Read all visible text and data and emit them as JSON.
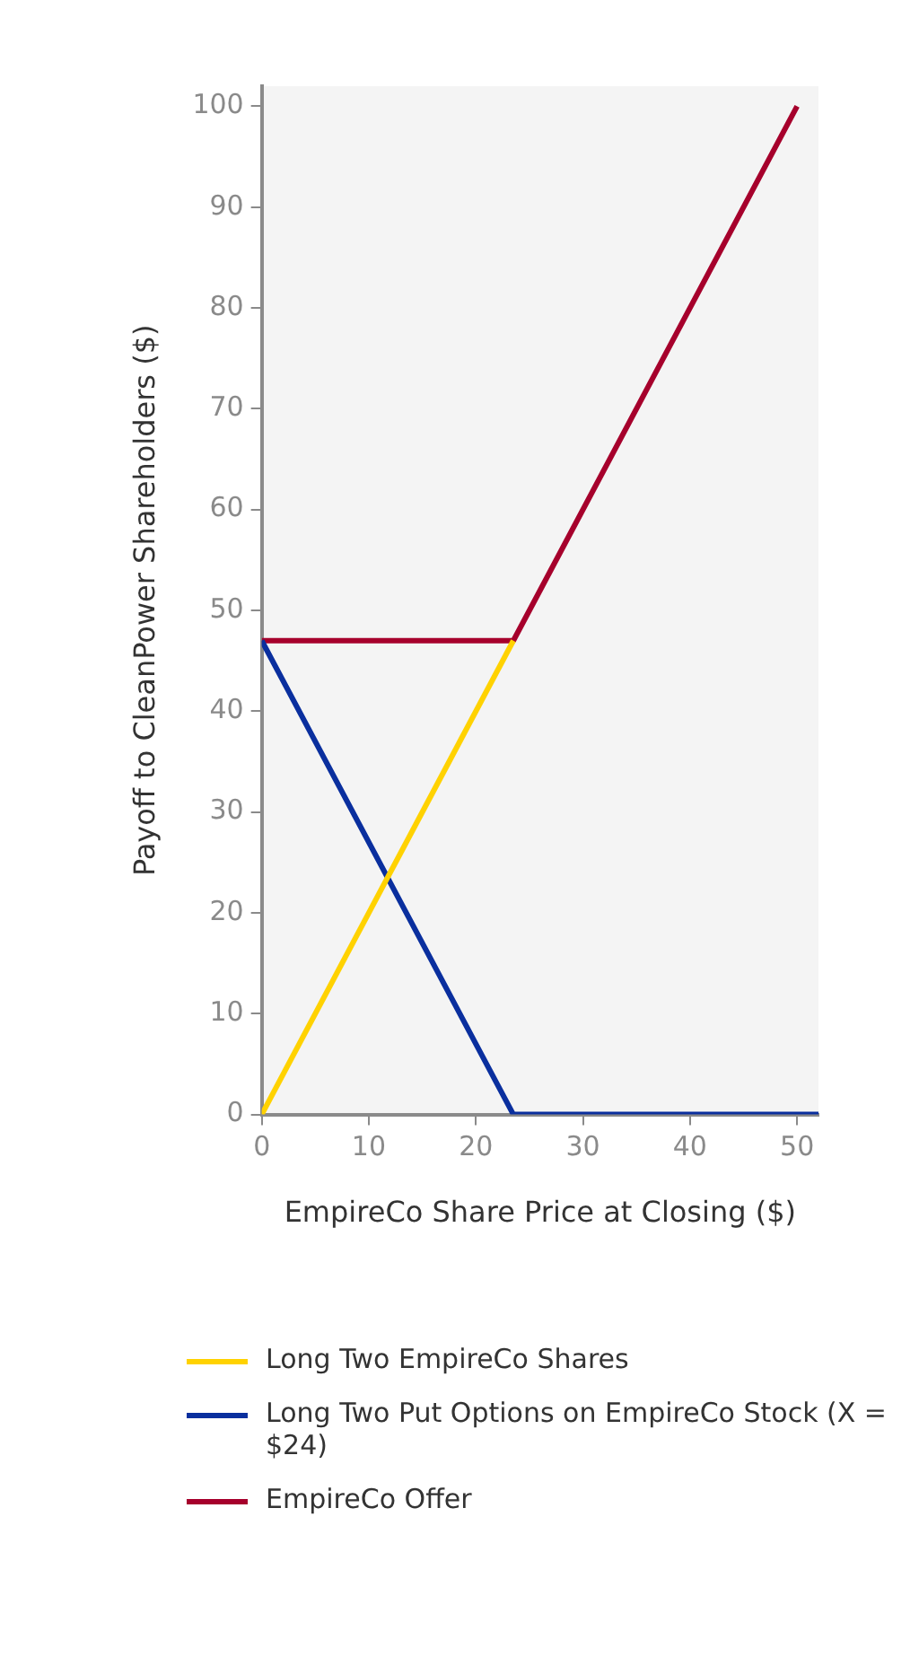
{
  "chart_data": {
    "type": "line",
    "xlabel": "EmpireCo Share Price at Closing ($)",
    "ylabel": "Payoff to CleanPower Shareholders ($)",
    "xlim": [
      0,
      52
    ],
    "xticks": [
      0,
      10,
      20,
      30,
      40,
      50
    ],
    "ylim": [
      0,
      102
    ],
    "yticks": [
      0,
      10,
      20,
      30,
      40,
      50,
      60,
      70,
      80,
      90,
      100
    ],
    "grid": false,
    "legend": "bottom",
    "marker": "none",
    "line_style": "solid",
    "series": [
      {
        "name": "Long Two EmpireCo Shares",
        "color": "#ffd200",
        "x": [
          0,
          23.5
        ],
        "values": [
          0,
          47
        ]
      },
      {
        "name": "Long Two Put Options on EmpireCo Stock (X = $24)",
        "color": "#0a2f9e",
        "x": [
          0,
          23.5,
          52
        ],
        "values": [
          47,
          0,
          0
        ]
      },
      {
        "name": "EmpireCo Offer",
        "color": "#a6002c",
        "x": [
          0,
          23.5,
          50
        ],
        "values": [
          47,
          47,
          100
        ]
      }
    ]
  }
}
